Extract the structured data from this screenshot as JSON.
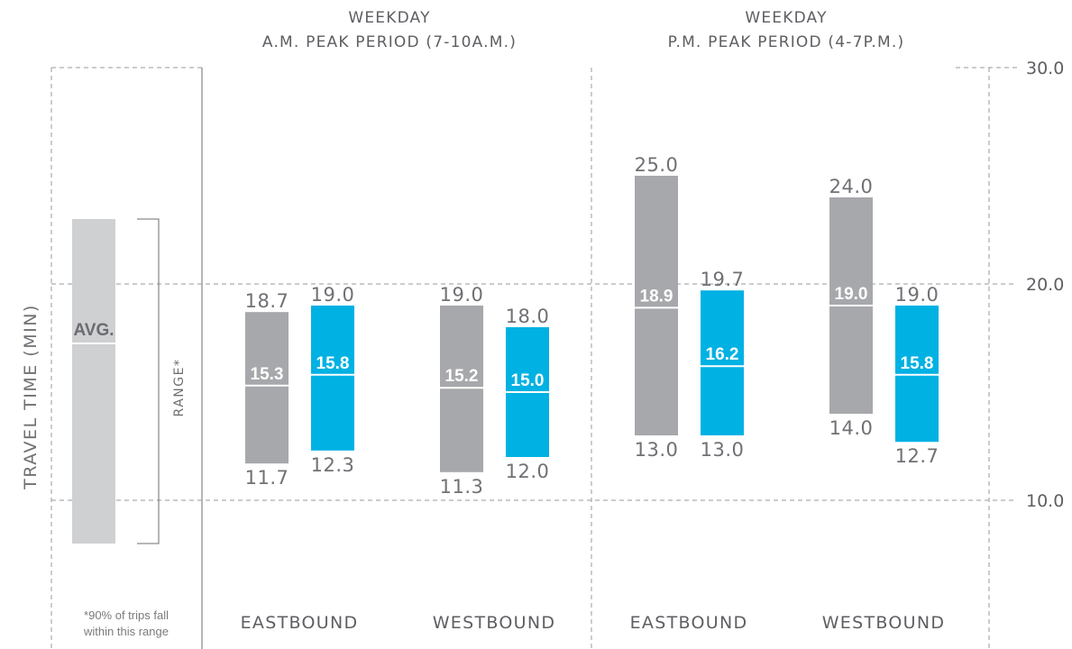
{
  "chart_data": {
    "type": "range-bar",
    "ylabel": "TRAVEL TIME (MIN)",
    "ylim": [
      0,
      30
    ],
    "yticks": [
      "10.0",
      "20.0",
      "30.0"
    ],
    "grid": true,
    "colors": {
      "gray": "#a7a8ab",
      "blue": "#00b1e3",
      "legend": "#cfd0d2"
    },
    "legend": {
      "avg_label": "AVG.",
      "range_label": "RANGE*",
      "footnote_line1": "*90% of trips fall",
      "footnote_line2": "within this range"
    },
    "periods": [
      {
        "title_line1": "WEEKDAY",
        "title_line2": "A.M. PEAK PERIOD (7-10A.M.)",
        "groups": [
          {
            "direction": "EASTBOUND",
            "bars": [
              {
                "color": "gray",
                "min": 11.7,
                "max": 18.7,
                "avg": 15.3,
                "min_label": "11.7",
                "max_label": "18.7",
                "avg_label": "15.3"
              },
              {
                "color": "blue",
                "min": 12.3,
                "max": 19.0,
                "avg": 15.8,
                "min_label": "12.3",
                "max_label": "19.0",
                "avg_label": "15.8"
              }
            ]
          },
          {
            "direction": "WESTBOUND",
            "bars": [
              {
                "color": "gray",
                "min": 11.3,
                "max": 19.0,
                "avg": 15.2,
                "min_label": "11.3",
                "max_label": "19.0",
                "avg_label": "15.2"
              },
              {
                "color": "blue",
                "min": 12.0,
                "max": 18.0,
                "avg": 15.0,
                "min_label": "12.0",
                "max_label": "18.0",
                "avg_label": "15.0"
              }
            ]
          }
        ]
      },
      {
        "title_line1": "WEEKDAY",
        "title_line2": "P.M. PEAK PERIOD (4-7P.M.)",
        "groups": [
          {
            "direction": "EASTBOUND",
            "bars": [
              {
                "color": "gray",
                "min": 13.0,
                "max": 25.0,
                "avg": 18.9,
                "min_label": "13.0",
                "max_label": "25.0",
                "avg_label": "18.9"
              },
              {
                "color": "blue",
                "min": 13.0,
                "max": 19.7,
                "avg": 16.2,
                "min_label": "13.0",
                "max_label": "19.7",
                "avg_label": "16.2"
              }
            ]
          },
          {
            "direction": "WESTBOUND",
            "bars": [
              {
                "color": "gray",
                "min": 14.0,
                "max": 24.0,
                "avg": 19.0,
                "min_label": "14.0",
                "max_label": "24.0",
                "avg_label": "19.0"
              },
              {
                "color": "blue",
                "min": 12.7,
                "max": 19.0,
                "avg": 15.8,
                "min_label": "12.7",
                "max_label": "19.0",
                "avg_label": "15.8"
              }
            ]
          }
        ]
      }
    ]
  }
}
